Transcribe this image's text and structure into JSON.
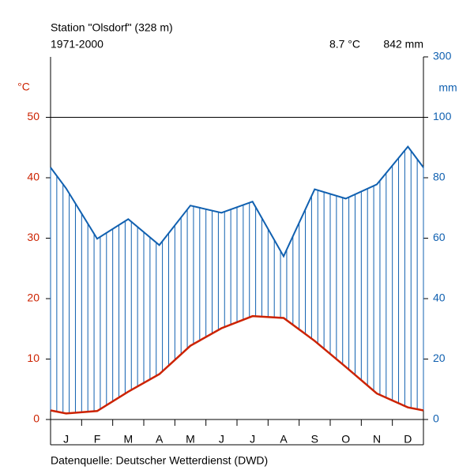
{
  "chart_data": {
    "type": "climate",
    "title": "Station \"Olsdorf\" (328 m)",
    "subtitle": "1971-2000",
    "annotations": [
      "8.7 °C",
      "842 mm"
    ],
    "source": "Datenquelle: Deutscher Wetterdienst (DWD)",
    "y_label": "°C",
    "y2_label": "mm",
    "categories": [
      "J",
      "F",
      "M",
      "A",
      "M",
      "J",
      "J",
      "A",
      "S",
      "O",
      "N",
      "D"
    ],
    "series": [
      {
        "color": "#cc2200",
        "values": [
          1.0,
          1.4,
          4.6,
          7.5,
          12.2,
          15.1,
          17.1,
          16.8,
          13.0,
          8.7,
          4.3,
          2.0
        ]
      },
      {
        "color": "#1060b0",
        "axis": "y2",
        "values": [
          76.5,
          59.8,
          66.3,
          57.7,
          70.8,
          68.4,
          72.1,
          54.0,
          76.2,
          73.1,
          77.8,
          90.3
        ]
      }
    ],
    "ylim": [
      0,
      60
    ],
    "yticks": [
      0,
      10,
      20,
      30,
      40,
      50
    ],
    "y2lim": [
      0,
      300
    ],
    "y2ticks": [
      0,
      20,
      40,
      60,
      80,
      100,
      300
    ],
    "y2_break": 100
  }
}
